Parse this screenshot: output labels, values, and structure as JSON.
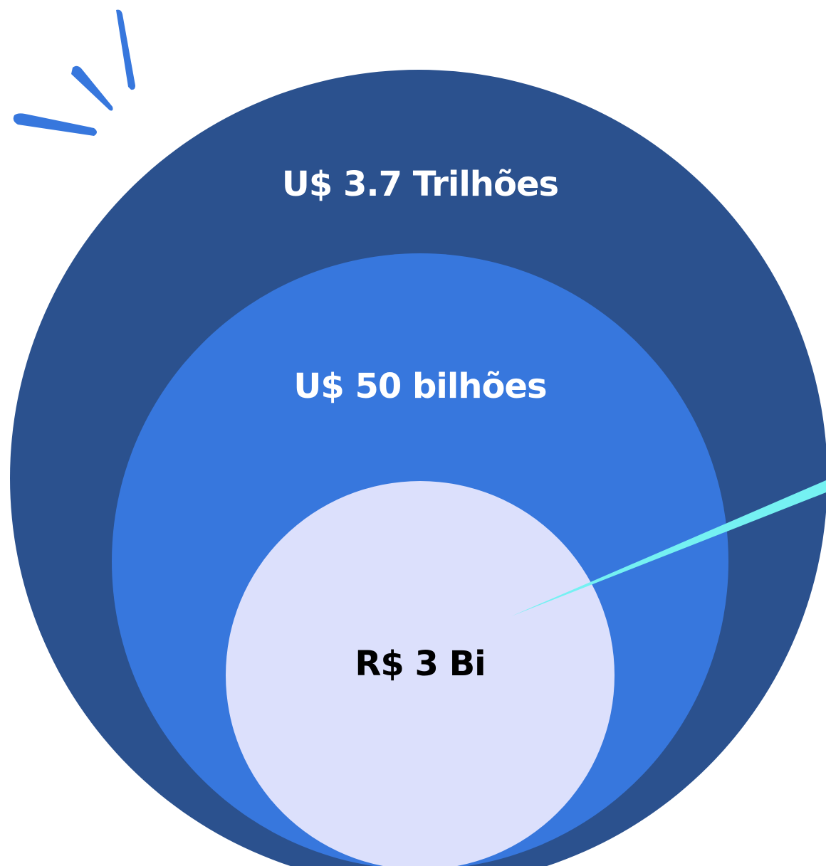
{
  "circles": [
    {
      "label": "U$ 3.7 Trilhões"
    },
    {
      "label": "U$ 50 bilhões"
    },
    {
      "label": "R$ 3 Bi"
    }
  ]
}
